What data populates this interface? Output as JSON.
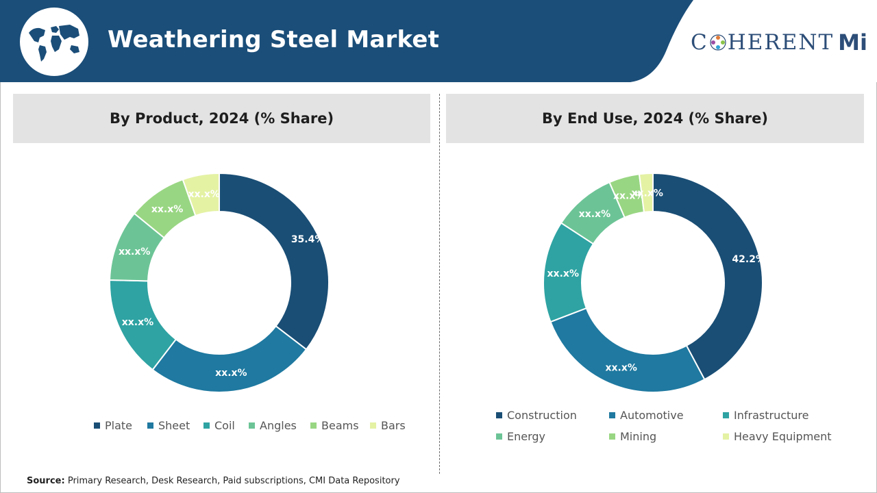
{
  "header": {
    "title": "Weathering Steel Market",
    "logo_text": "COHERENT",
    "logo_suffix": "Mi",
    "bg_color": "#1b4e79",
    "accent_color": "#2d4e78"
  },
  "source": {
    "label": "Source:",
    "text": "Primary Research, Desk Research, Paid subscriptions, CMI Data Repository"
  },
  "chart_data": [
    {
      "type": "pie",
      "title": "By Product, 2024 (% Share)",
      "categories": [
        "Plate",
        "Sheet",
        "Coil",
        "Angles",
        "Beams",
        "Bars"
      ],
      "values": [
        35.4,
        25.0,
        15.0,
        10.5,
        8.7,
        5.4
      ],
      "data_labels": [
        "35.4%",
        "xx.x%",
        "xx.x%",
        "xx.x%",
        "xx.x%",
        "xx.x%"
      ],
      "colors": [
        "#1a4e75",
        "#1f79a0",
        "#2fa3a3",
        "#6cc496",
        "#99d683",
        "#e4f2a4"
      ],
      "legend_position": "bottom"
    },
    {
      "type": "pie",
      "title": "By End Use, 2024 (% Share)",
      "categories": [
        "Construction",
        "Automotive",
        "Infrastructure",
        "Energy",
        "Mining",
        "Heavy Equipment"
      ],
      "values": [
        42.2,
        27.0,
        15.0,
        9.3,
        4.5,
        2.0
      ],
      "data_labels": [
        "42.2%",
        "xx.x%",
        "xx.x%",
        "xx.x%",
        "xx.x%",
        "xx.x%"
      ],
      "colors": [
        "#1a4e75",
        "#1f79a0",
        "#2fa3a3",
        "#6cc496",
        "#99d683",
        "#e4f2a4"
      ],
      "legend_position": "bottom"
    }
  ]
}
